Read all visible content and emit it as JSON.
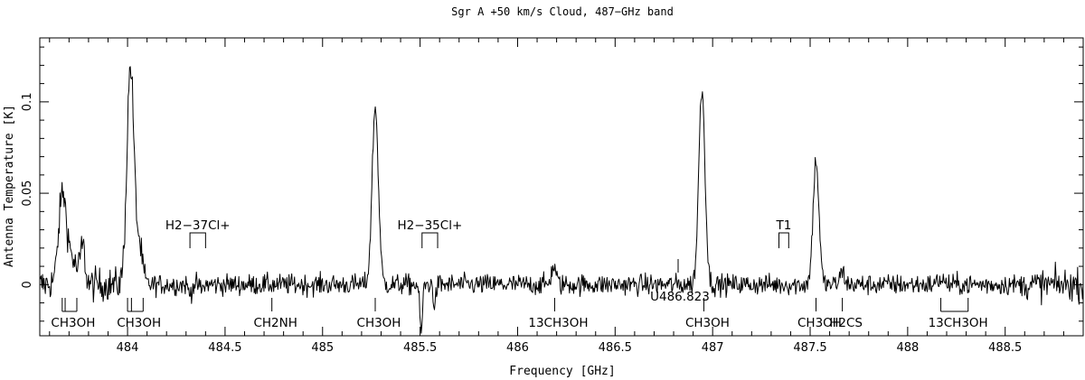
{
  "chart_data": {
    "type": "line",
    "title": "Sgr A  +50 km/s Cloud, 487−GHz band",
    "xlabel": "Frequency  [GHz]",
    "ylabel": "Antenna Temperature [K]",
    "xlim": [
      483.55,
      488.9
    ],
    "ylim": [
      -0.028,
      0.135
    ],
    "xticks": [
      484,
      484.5,
      485,
      485.5,
      486,
      486.5,
      487,
      487.5,
      488,
      488.5
    ],
    "xtick_labels": [
      "484",
      "484.5",
      "485",
      "485.5",
      "486",
      "486.5",
      "487",
      "487.5",
      "488",
      "488.5"
    ],
    "yticks": [
      0,
      0.05,
      0.1
    ],
    "ytick_labels": [
      "0",
      "0.05",
      "0.1"
    ],
    "baseline_noise": 0.0028,
    "features": [
      {
        "center": 483.665,
        "amplitude": 0.038,
        "width": 0.018
      },
      {
        "center": 483.695,
        "amplitude": 0.018,
        "width": 0.035
      },
      {
        "center": 483.77,
        "amplitude": 0.02,
        "width": 0.012
      },
      {
        "center": 484.015,
        "amplitude": 0.12,
        "width": 0.018
      },
      {
        "center": 484.06,
        "amplitude": 0.02,
        "width": 0.015
      },
      {
        "center": 484.32,
        "amplitude": -0.005,
        "width": 0.008
      },
      {
        "center": 484.38,
        "amplitude": -0.003,
        "width": 0.008
      },
      {
        "center": 485.27,
        "amplitude": 0.097,
        "width": 0.016
      },
      {
        "center": 485.505,
        "amplitude": -0.026,
        "width": 0.007
      },
      {
        "center": 485.575,
        "amplitude": -0.012,
        "width": 0.006
      },
      {
        "center": 486.185,
        "amplitude": 0.01,
        "width": 0.012
      },
      {
        "center": 486.945,
        "amplitude": 0.107,
        "width": 0.016
      },
      {
        "center": 487.53,
        "amplitude": 0.068,
        "width": 0.015
      },
      {
        "center": 487.665,
        "amplitude": 0.007,
        "width": 0.012
      },
      {
        "center": 488.17,
        "amplitude": 0.003,
        "width": 0.015
      }
    ],
    "annotations_above": [
      {
        "label": "H2−37Cl+",
        "left": 484.32,
        "right": 484.4
      },
      {
        "label": "H2−35Cl+",
        "left": 485.51,
        "right": 485.59
      },
      {
        "label": "T1",
        "left": 487.34,
        "right": 487.39
      }
    ],
    "annotations_below": [
      {
        "label": "CH3OH",
        "ticks": [
          483.665,
          483.68,
          483.74
        ],
        "bracket": true
      },
      {
        "label": "CH3OH",
        "ticks": [
          484.0,
          484.02,
          484.08
        ],
        "bracket": true
      },
      {
        "label": "CH2NH",
        "ticks": [
          484.74
        ],
        "bracket": false
      },
      {
        "label": "CH3OH",
        "ticks": [
          485.27
        ],
        "bracket": false
      },
      {
        "label": "13CH3OH",
        "ticks": [
          486.19
        ],
        "bracket": false
      },
      {
        "label": "U486.823",
        "ticks": [
          486.823
        ],
        "bracket": false,
        "upper": true
      },
      {
        "label": "CH3OH",
        "ticks": [
          486.955
        ],
        "bracket": false
      },
      {
        "label": "CH3OH",
        "ticks": [
          487.53
        ],
        "bracket": false
      },
      {
        "label": "H2CS",
        "ticks": [
          487.665
        ],
        "bracket": false
      },
      {
        "label": "13CH3OH",
        "ticks": [
          488.17,
          488.31
        ],
        "bracket": true
      }
    ]
  }
}
